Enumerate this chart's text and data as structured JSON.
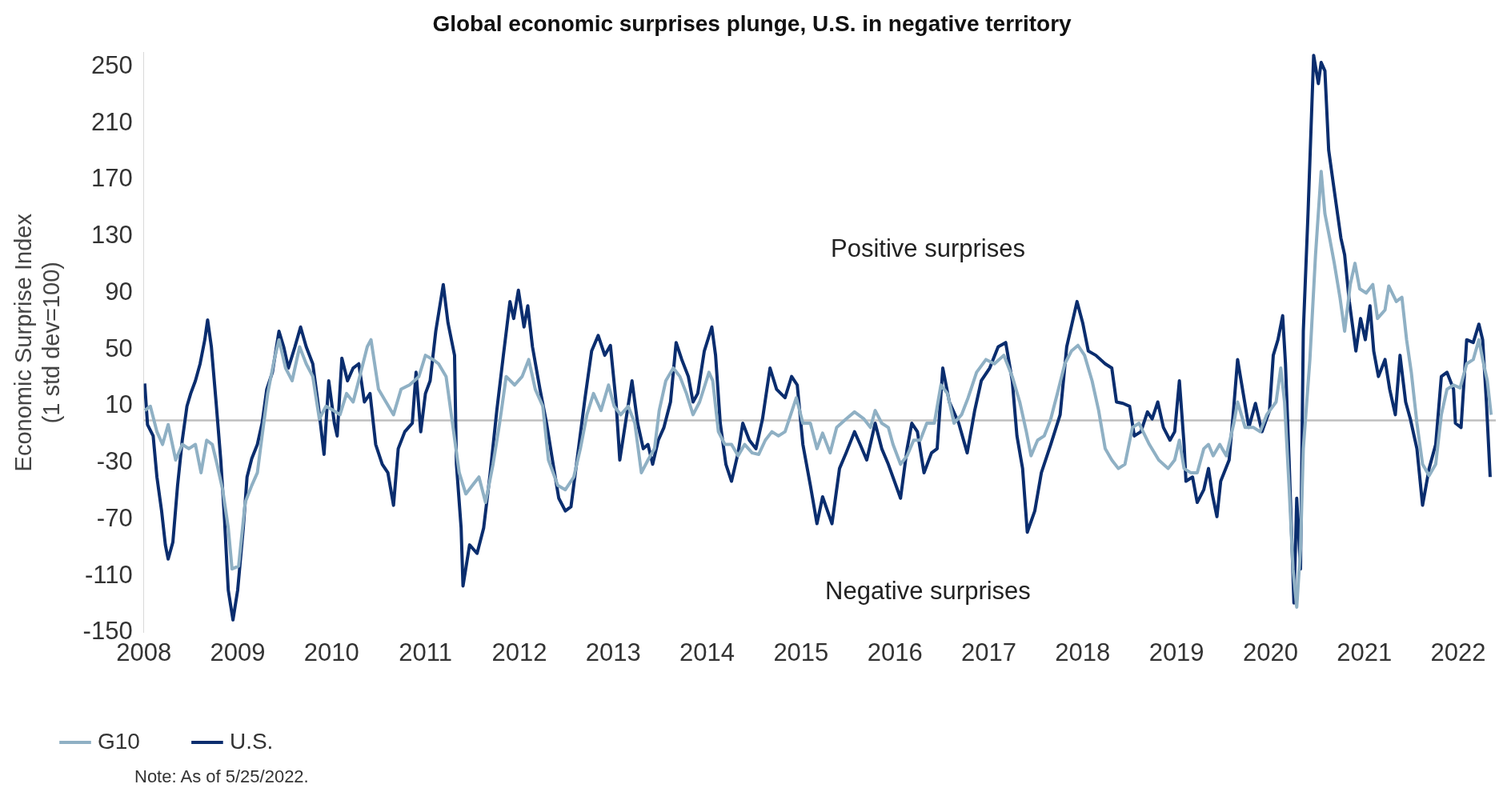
{
  "chart_data": {
    "type": "line",
    "title": "Global economic surprises plunge, U.S. in negative territory",
    "ylabel": "Economic Surprise Index\n(1 std dev=100)",
    "xlim": [
      2008,
      2022.4
    ],
    "xticks": [
      2008,
      2009,
      2010,
      2011,
      2012,
      2013,
      2014,
      2015,
      2016,
      2017,
      2018,
      2019,
      2020,
      2021,
      2022
    ],
    "ylim": [
      -150,
      260
    ],
    "yticks": [
      -150,
      -110,
      -70,
      -30,
      10,
      50,
      90,
      130,
      170,
      210,
      250
    ],
    "legend": "bottom left",
    "marker": "none",
    "line_style": "solid",
    "ref_lines": [
      {
        "axis": "y",
        "value": 0,
        "color": "#bfbfbf"
      }
    ],
    "annotations": [
      "Positive surprises",
      "Negative surprises",
      "Note: As of 5/25/2022."
    ],
    "series": [
      {
        "name": "G10",
        "color": "#8fb0c4",
        "x": [
          2008.01,
          2008.07,
          2008.14,
          2008.2,
          2008.26,
          2008.34,
          2008.41,
          2008.48,
          2008.55,
          2008.61,
          2008.67,
          2008.73,
          2008.78,
          2008.84,
          2008.9,
          2008.94,
          2009.01,
          2009.08,
          2009.15,
          2009.21,
          2009.26,
          2009.32,
          2009.39,
          2009.44,
          2009.51,
          2009.58,
          2009.66,
          2009.73,
          2009.8,
          2009.87,
          2009.94,
          2010.02,
          2010.09,
          2010.16,
          2010.23,
          2010.3,
          2010.38,
          2010.42,
          2010.5,
          2010.58,
          2010.66,
          2010.74,
          2010.83,
          2010.93,
          2011.0,
          2011.08,
          2011.14,
          2011.22,
          2011.36,
          2011.43,
          2011.5,
          2011.57,
          2011.64,
          2011.72,
          2011.79,
          2011.86,
          2011.95,
          2012.03,
          2012.1,
          2012.17,
          2012.25,
          2012.31,
          2012.41,
          2012.49,
          2012.58,
          2012.65,
          2012.72,
          2012.79,
          2012.87,
          2012.95,
          2013.01,
          2013.08,
          2013.16,
          2013.23,
          2013.3,
          2013.37,
          2013.44,
          2013.49,
          2013.56,
          2013.64,
          2013.71,
          2013.78,
          2013.85,
          2013.92,
          2014.02,
          2014.06,
          2014.12,
          2014.19,
          2014.26,
          2014.33,
          2014.4,
          2014.48,
          2014.55,
          2014.62,
          2014.69,
          2014.76,
          2014.83,
          2014.95,
          2015.02,
          2015.1,
          2015.17,
          2015.23,
          2015.31,
          2015.38,
          2015.48,
          2015.57,
          2015.67,
          2015.74,
          2015.79,
          2015.86,
          2015.93,
          2015.98,
          2016.06,
          2016.13,
          2016.2,
          2016.27,
          2016.34,
          2016.42,
          2016.49,
          2016.56,
          2016.63,
          2016.71,
          2016.78,
          2016.87,
          2016.97,
          2017.06,
          2017.16,
          2017.25,
          2017.33,
          2017.4,
          2017.45,
          2017.52,
          2017.59,
          2017.66,
          2017.73,
          2017.81,
          2017.88,
          2017.95,
          2018.02,
          2018.1,
          2018.17,
          2018.24,
          2018.31,
          2018.38,
          2018.45,
          2018.53,
          2018.6,
          2018.71,
          2018.81,
          2018.91,
          2018.98,
          2019.03,
          2019.08,
          2019.15,
          2019.22,
          2019.29,
          2019.34,
          2019.39,
          2019.46,
          2019.53,
          2019.61,
          2019.65,
          2019.73,
          2019.82,
          2019.89,
          2019.96,
          2020.06,
          2020.11,
          2020.15,
          2020.2,
          2020.24,
          2020.28,
          2020.32,
          2020.35,
          2020.42,
          2020.48,
          2020.54,
          2020.58,
          2020.63,
          2020.68,
          2020.74,
          2020.79,
          2020.85,
          2020.9,
          2020.95,
          2021.02,
          2021.09,
          2021.14,
          2021.22,
          2021.26,
          2021.34,
          2021.4,
          2021.45,
          2021.5,
          2021.56,
          2021.62,
          2021.69,
          2021.76,
          2021.82,
          2021.88,
          2021.95,
          2022.02,
          2022.09,
          2022.16,
          2022.22,
          2022.26,
          2022.31,
          2022.35
        ],
        "values": [
          7,
          10,
          -8,
          -17,
          -3,
          -28,
          -17,
          -20,
          -17,
          -37,
          -14,
          -17,
          -31,
          -49,
          -76,
          -105,
          -103,
          -58,
          -46,
          -37,
          -11,
          19,
          43,
          57,
          37,
          28,
          52,
          40,
          31,
          1,
          10,
          7,
          4,
          19,
          13,
          31,
          52,
          57,
          22,
          13,
          4,
          22,
          25,
          31,
          46,
          43,
          40,
          31,
          -37,
          -52,
          -46,
          -40,
          -58,
          -31,
          -2,
          31,
          25,
          31,
          43,
          22,
          10,
          -28,
          -46,
          -49,
          -40,
          -20,
          4,
          19,
          7,
          25,
          10,
          4,
          10,
          -2,
          -37,
          -28,
          -20,
          7,
          28,
          37,
          31,
          19,
          4,
          13,
          34,
          28,
          -8,
          -17,
          -17,
          -25,
          -17,
          -23,
          -24,
          -14,
          -8,
          -11,
          -8,
          16,
          -2,
          -2,
          -20,
          -9,
          -23,
          -5,
          1,
          6,
          1,
          -5,
          7,
          -2,
          -5,
          -17,
          -31,
          -25,
          -14,
          -14,
          -2,
          -2,
          25,
          19,
          -2,
          4,
          16,
          34,
          43,
          40,
          46,
          31,
          13,
          -8,
          -25,
          -14,
          -11,
          1,
          19,
          40,
          49,
          53,
          46,
          28,
          7,
          -20,
          -28,
          -34,
          -31,
          -5,
          -2,
          -17,
          -28,
          -34,
          -28,
          -14,
          -34,
          -37,
          -37,
          -20,
          -17,
          -25,
          -17,
          -25,
          -2,
          13,
          -5,
          -5,
          -8,
          4,
          13,
          37,
          13,
          -49,
          -105,
          -132,
          -91,
          -20,
          43,
          117,
          176,
          146,
          129,
          111,
          87,
          63,
          96,
          111,
          93,
          90,
          96,
          72,
          78,
          95,
          84,
          87,
          57,
          34,
          -2,
          -31,
          -39,
          -31,
          4,
          22,
          25,
          23,
          40,
          43,
          57,
          43,
          28,
          4
        ]
      },
      {
        "name": "U.S.",
        "color": "#0a2d6e",
        "x": [
          2008.01,
          2008.04,
          2008.1,
          2008.14,
          2008.19,
          2008.23,
          2008.26,
          2008.31,
          2008.36,
          2008.41,
          2008.46,
          2008.5,
          2008.55,
          2008.6,
          2008.65,
          2008.68,
          2008.72,
          2008.77,
          2008.82,
          2008.86,
          2008.9,
          2008.95,
          2009.0,
          2009.06,
          2009.1,
          2009.15,
          2009.21,
          2009.26,
          2009.31,
          2009.37,
          2009.44,
          2009.49,
          2009.54,
          2009.61,
          2009.67,
          2009.73,
          2009.8,
          2009.86,
          2009.92,
          2009.97,
          2010.03,
          2010.06,
          2010.11,
          2010.17,
          2010.23,
          2010.29,
          2010.35,
          2010.41,
          2010.47,
          2010.54,
          2010.6,
          2010.66,
          2010.71,
          2010.78,
          2010.86,
          2010.9,
          2010.95,
          2011.0,
          2011.05,
          2011.11,
          2011.19,
          2011.24,
          2011.31,
          2011.33,
          2011.38,
          2011.4,
          2011.47,
          2011.55,
          2011.62,
          2011.69,
          2011.76,
          2011.83,
          2011.9,
          2011.94,
          2011.99,
          2012.05,
          2012.09,
          2012.14,
          2012.22,
          2012.29,
          2012.36,
          2012.42,
          2012.49,
          2012.55,
          2012.63,
          2012.7,
          2012.77,
          2012.84,
          2012.91,
          2012.97,
          2013.03,
          2013.07,
          2013.13,
          2013.2,
          2013.26,
          2013.32,
          2013.37,
          2013.42,
          2013.48,
          2013.54,
          2013.61,
          2013.67,
          2013.73,
          2013.8,
          2013.85,
          2013.9,
          2013.97,
          2014.05,
          2014.09,
          2014.14,
          2014.2,
          2014.26,
          2014.33,
          2014.38,
          2014.45,
          2014.52,
          2014.59,
          2014.67,
          2014.74,
          2014.83,
          2014.9,
          2014.96,
          2015.02,
          2015.1,
          2015.17,
          2015.23,
          2015.33,
          2015.41,
          2015.48,
          2015.57,
          2015.63,
          2015.7,
          2015.79,
          2015.86,
          2015.93,
          2016.06,
          2016.13,
          2016.18,
          2016.24,
          2016.31,
          2016.39,
          2016.45,
          2016.51,
          2016.58,
          2016.68,
          2016.77,
          2016.85,
          2016.92,
          2017.01,
          2017.1,
          2017.18,
          2017.25,
          2017.3,
          2017.36,
          2017.41,
          2017.49,
          2017.56,
          2017.66,
          2017.76,
          2017.83,
          2017.94,
          2018.0,
          2018.06,
          2018.14,
          2018.24,
          2018.31,
          2018.36,
          2018.43,
          2018.5,
          2018.55,
          2018.62,
          2018.69,
          2018.74,
          2018.8,
          2018.86,
          2018.93,
          2018.98,
          2019.03,
          2019.08,
          2019.1,
          2019.17,
          2019.22,
          2019.29,
          2019.34,
          2019.38,
          2019.43,
          2019.47,
          2019.56,
          2019.61,
          2019.65,
          2019.71,
          2019.77,
          2019.84,
          2019.91,
          2019.99,
          2020.03,
          2020.08,
          2020.13,
          2020.16,
          2020.2,
          2020.25,
          2020.28,
          2020.32,
          2020.35,
          2020.4,
          2020.46,
          2020.51,
          2020.54,
          2020.58,
          2020.62,
          2020.67,
          2020.75,
          2020.79,
          2020.84,
          2020.91,
          2020.96,
          2021.01,
          2021.06,
          2021.1,
          2021.15,
          2021.22,
          2021.27,
          2021.33,
          2021.38,
          2021.44,
          2021.49,
          2021.56,
          2021.62,
          2021.69,
          2021.76,
          2021.82,
          2021.88,
          2021.95,
          2021.97,
          2022.03,
          2022.09,
          2022.16,
          2022.22,
          2022.26,
          2022.3,
          2022.34
        ],
        "values": [
          26,
          -3,
          -11,
          -40,
          -64,
          -88,
          -98,
          -86,
          -46,
          -14,
          10,
          19,
          28,
          40,
          57,
          71,
          52,
          13,
          -28,
          -70,
          -120,
          -141,
          -120,
          -76,
          -40,
          -27,
          -17,
          -2,
          22,
          34,
          63,
          52,
          37,
          52,
          66,
          52,
          40,
          10,
          -24,
          28,
          -2,
          -11,
          44,
          28,
          37,
          40,
          13,
          19,
          -17,
          -31,
          -37,
          -60,
          -20,
          -8,
          -2,
          34,
          -8,
          19,
          28,
          63,
          96,
          69,
          46,
          -31,
          -76,
          -117,
          -88,
          -94,
          -76,
          -37,
          7,
          46,
          84,
          72,
          92,
          66,
          81,
          52,
          22,
          -2,
          -31,
          -55,
          -64,
          -61,
          -20,
          16,
          49,
          60,
          46,
          53,
          13,
          -28,
          -2,
          28,
          -2,
          -20,
          -17,
          -31,
          -14,
          -5,
          13,
          55,
          43,
          31,
          13,
          19,
          49,
          66,
          46,
          -2,
          -31,
          -43,
          -23,
          -2,
          -14,
          -20,
          1,
          37,
          22,
          16,
          31,
          25,
          -17,
          -46,
          -73,
          -54,
          -73,
          -34,
          -23,
          -8,
          -17,
          -28,
          -2,
          -20,
          -31,
          -55,
          -20,
          -2,
          -8,
          -37,
          -23,
          -20,
          37,
          13,
          -2,
          -23,
          7,
          28,
          37,
          52,
          55,
          28,
          -11,
          -34,
          -79,
          -64,
          -37,
          -17,
          4,
          52,
          84,
          69,
          49,
          46,
          40,
          37,
          13,
          12,
          10,
          -11,
          -8,
          6,
          1,
          13,
          -5,
          -14,
          -8,
          28,
          -17,
          -43,
          -40,
          -58,
          -49,
          -34,
          -52,
          -68,
          -43,
          -28,
          10,
          43,
          19,
          -5,
          12,
          -8,
          7,
          46,
          57,
          74,
          40,
          -31,
          -129,
          -55,
          -105,
          63,
          146,
          258,
          238,
          253,
          247,
          191,
          167,
          129,
          117,
          84,
          49,
          72,
          57,
          81,
          49,
          31,
          43,
          22,
          4,
          46,
          13,
          1,
          -20,
          -60,
          -34,
          -17,
          31,
          34,
          22,
          -2,
          -5,
          57,
          55,
          68,
          57,
          13,
          -40
        ]
      }
    ]
  }
}
